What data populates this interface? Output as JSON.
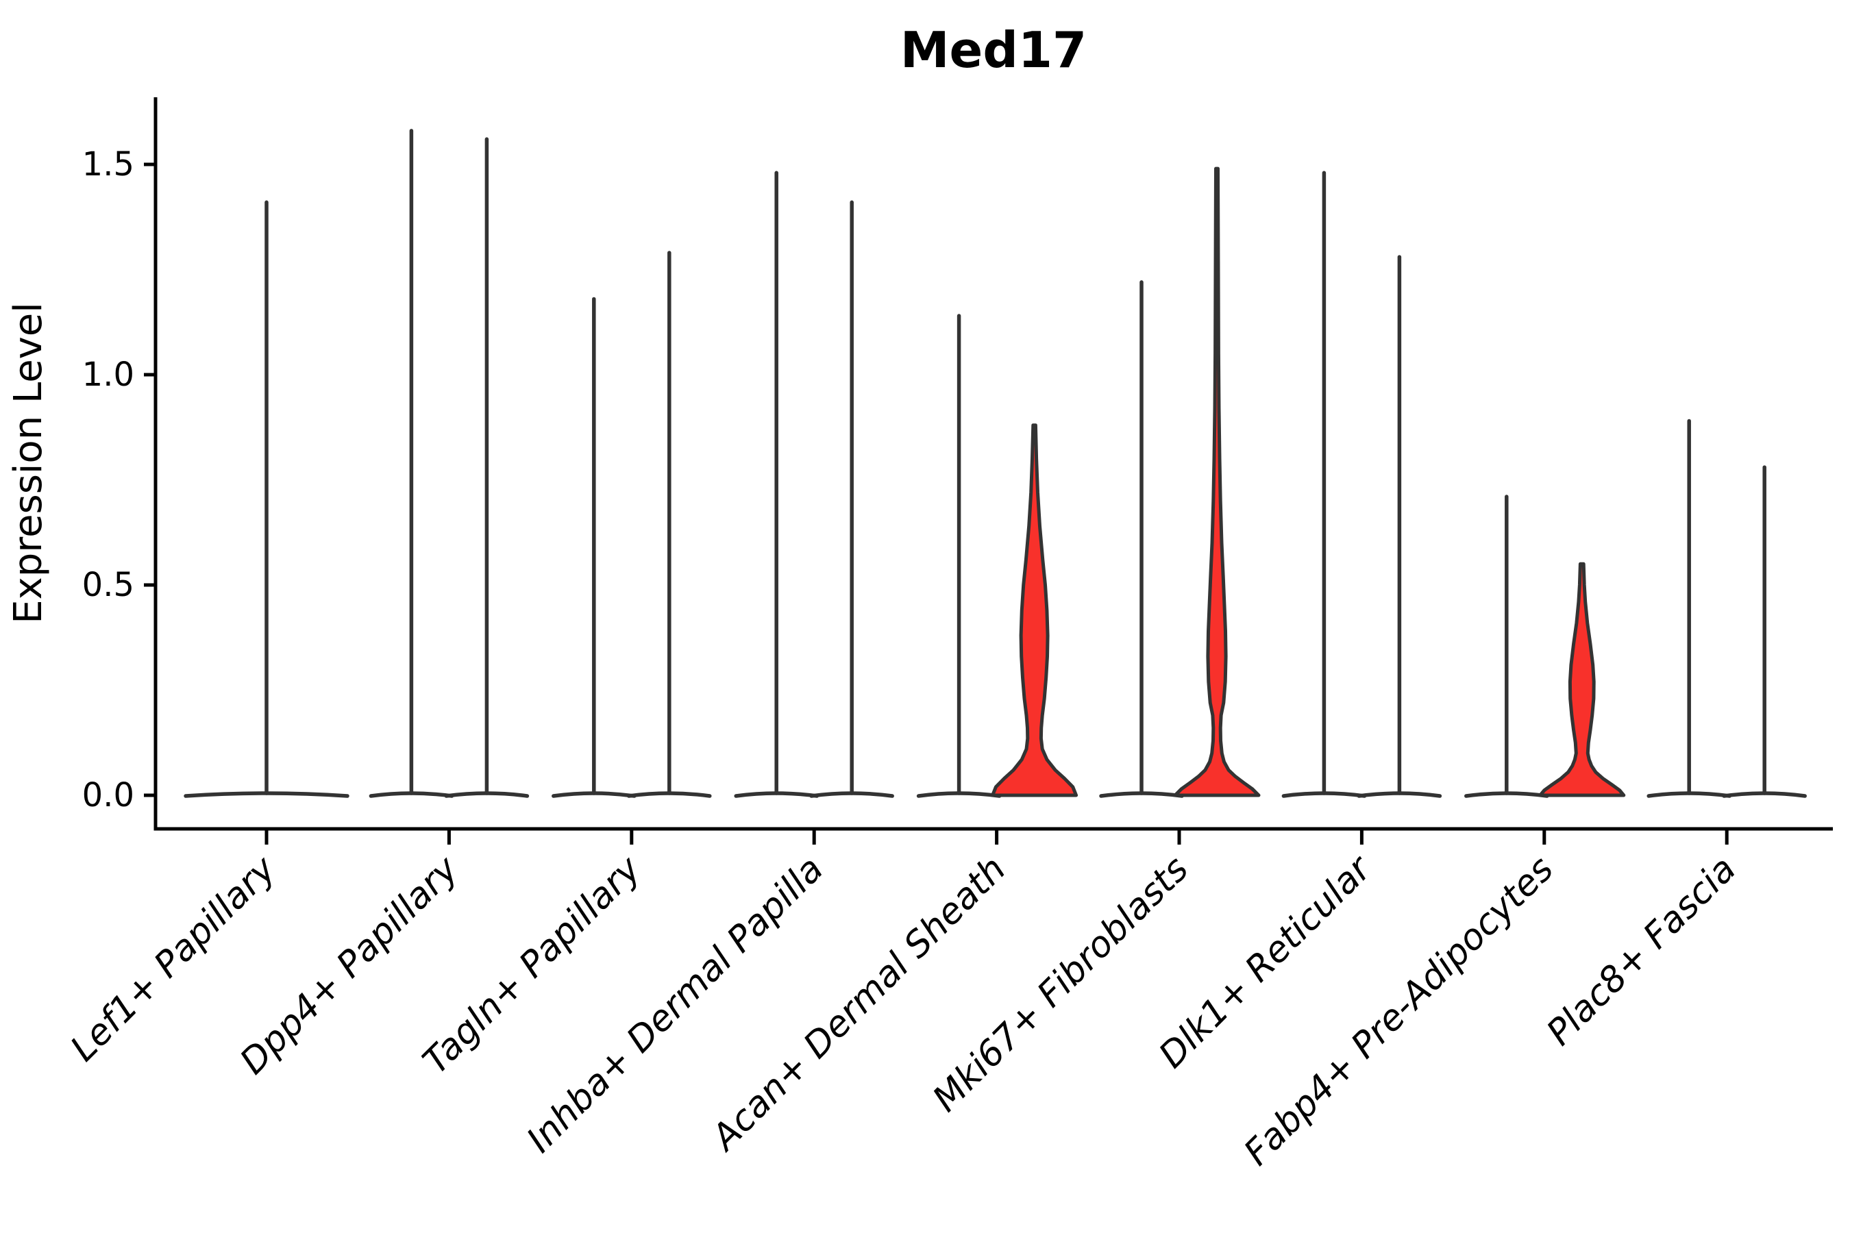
{
  "figure": {
    "title": "Med17",
    "ylabel": "Expression Level"
  },
  "chart_data": {
    "type": "violin",
    "title": "Med17",
    "xlabel": "",
    "ylabel": "Expression Level",
    "grid": false,
    "legend": "none",
    "yticks": [
      0.0,
      0.5,
      1.0,
      1.5
    ],
    "ytick_labels": [
      "0.0",
      "0.5",
      "1.0",
      "1.5"
    ],
    "ylim": [
      -0.08,
      1.66
    ],
    "colors": {
      "highlight_fill": "#f8312b",
      "violin_outline": "#333333",
      "axis": "#000000",
      "background": "#ffffff"
    },
    "categories": [
      "Lef1+ Papillary",
      "Dpp4+ Papillary",
      "Tagln+ Papillary",
      "Inhba+ Dermal Papilla",
      "Acan+ Dermal Sheath",
      "Mki67+ Fibroblasts",
      "Dlk1+ Reticular",
      "Fabp4+ Pre-Adipocytes",
      "Plac8+ Fascia"
    ],
    "violins": [
      {
        "cat": 0,
        "category": "Lef1+ Papillary",
        "side": "center",
        "max_expression": 1.41,
        "highlighted": false
      },
      {
        "cat": 1,
        "category": "Dpp4+ Papillary",
        "side": "left",
        "max_expression": 1.58,
        "highlighted": false
      },
      {
        "cat": 1,
        "category": "Dpp4+ Papillary",
        "side": "right",
        "max_expression": 1.56,
        "highlighted": false
      },
      {
        "cat": 2,
        "category": "Tagln+ Papillary",
        "side": "left",
        "max_expression": 1.18,
        "highlighted": false
      },
      {
        "cat": 2,
        "category": "Tagln+ Papillary",
        "side": "right",
        "max_expression": 1.29,
        "highlighted": false
      },
      {
        "cat": 3,
        "category": "Inhba+ Dermal Papilla",
        "side": "left",
        "max_expression": 1.48,
        "highlighted": false
      },
      {
        "cat": 3,
        "category": "Inhba+ Dermal Papilla",
        "side": "right",
        "max_expression": 1.41,
        "highlighted": false
      },
      {
        "cat": 4,
        "category": "Acan+ Dermal Sheath",
        "side": "left",
        "max_expression": 1.14,
        "highlighted": false
      },
      {
        "cat": 4,
        "category": "Acan+ Dermal Sheath",
        "side": "right",
        "max_expression": 0.88,
        "highlighted": true,
        "width_profile": [
          [
            0.88,
            0.03
          ],
          [
            0.8,
            0.05
          ],
          [
            0.72,
            0.08
          ],
          [
            0.64,
            0.13
          ],
          [
            0.56,
            0.2
          ],
          [
            0.5,
            0.26
          ],
          [
            0.44,
            0.3
          ],
          [
            0.38,
            0.32
          ],
          [
            0.33,
            0.31
          ],
          [
            0.28,
            0.28
          ],
          [
            0.23,
            0.24
          ],
          [
            0.19,
            0.19
          ],
          [
            0.16,
            0.165
          ],
          [
            0.135,
            0.16
          ],
          [
            0.11,
            0.19
          ],
          [
            0.085,
            0.3
          ],
          [
            0.06,
            0.5
          ],
          [
            0.04,
            0.72
          ],
          [
            0.02,
            0.92
          ],
          [
            0.0,
            1.0
          ]
        ]
      },
      {
        "cat": 5,
        "category": "Mki67+ Fibroblasts",
        "side": "left",
        "max_expression": 1.22,
        "highlighted": false
      },
      {
        "cat": 5,
        "category": "Mki67+ Fibroblasts",
        "side": "right",
        "max_expression": 1.49,
        "highlighted": true,
        "width_profile": [
          [
            1.49,
            0.025
          ],
          [
            1.35,
            0.03
          ],
          [
            1.2,
            0.035
          ],
          [
            1.05,
            0.04
          ],
          [
            0.92,
            0.05
          ],
          [
            0.8,
            0.065
          ],
          [
            0.7,
            0.085
          ],
          [
            0.6,
            0.115
          ],
          [
            0.52,
            0.15
          ],
          [
            0.45,
            0.18
          ],
          [
            0.39,
            0.205
          ],
          [
            0.33,
            0.215
          ],
          [
            0.27,
            0.2
          ],
          [
            0.22,
            0.16
          ],
          [
            0.19,
            0.1
          ],
          [
            0.16,
            0.085
          ],
          [
            0.13,
            0.09
          ],
          [
            0.1,
            0.12
          ],
          [
            0.08,
            0.17
          ],
          [
            0.06,
            0.28
          ],
          [
            0.045,
            0.44
          ],
          [
            0.03,
            0.64
          ],
          [
            0.015,
            0.85
          ],
          [
            0.0,
            1.0
          ]
        ]
      },
      {
        "cat": 6,
        "category": "Dlk1+ Reticular",
        "side": "left",
        "max_expression": 1.48,
        "highlighted": false
      },
      {
        "cat": 6,
        "category": "Dlk1+ Reticular",
        "side": "right",
        "max_expression": 1.28,
        "highlighted": false
      },
      {
        "cat": 7,
        "category": "Fabp4+ Pre-Adipocytes",
        "side": "left",
        "max_expression": 0.71,
        "highlighted": false
      },
      {
        "cat": 7,
        "category": "Fabp4+ Pre-Adipocytes",
        "side": "right",
        "max_expression": 0.55,
        "highlighted": true,
        "width_profile": [
          [
            0.55,
            0.04
          ],
          [
            0.5,
            0.055
          ],
          [
            0.46,
            0.08
          ],
          [
            0.41,
            0.13
          ],
          [
            0.36,
            0.2
          ],
          [
            0.31,
            0.26
          ],
          [
            0.27,
            0.285
          ],
          [
            0.23,
            0.28
          ],
          [
            0.19,
            0.245
          ],
          [
            0.155,
            0.2
          ],
          [
            0.125,
            0.155
          ],
          [
            0.1,
            0.14
          ],
          [
            0.085,
            0.17
          ],
          [
            0.07,
            0.23
          ],
          [
            0.055,
            0.33
          ],
          [
            0.04,
            0.5
          ],
          [
            0.025,
            0.72
          ],
          [
            0.012,
            0.9
          ],
          [
            0.0,
            1.0
          ]
        ]
      },
      {
        "cat": 8,
        "category": "Plac8+ Fascia",
        "side": "left",
        "max_expression": 0.89,
        "highlighted": false
      },
      {
        "cat": 8,
        "category": "Plac8+ Fascia",
        "side": "right",
        "max_expression": 0.78,
        "highlighted": false
      }
    ]
  }
}
